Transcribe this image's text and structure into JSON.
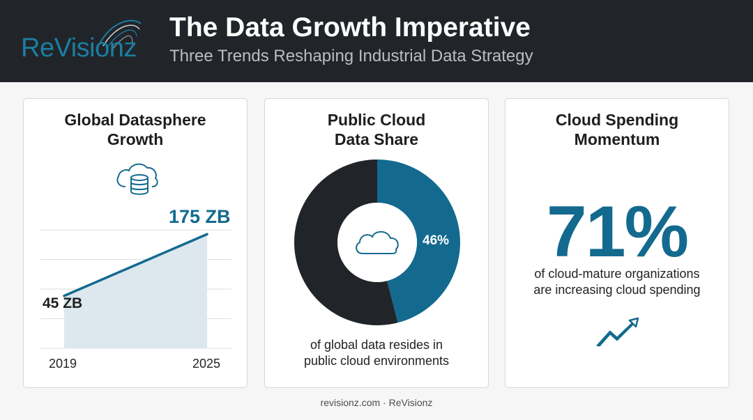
{
  "brand": {
    "logo_text": "ReVisionz"
  },
  "header": {
    "title": "The Data Growth Imperative",
    "subtitle": "Three Trends Reshaping Industrial Data Strategy"
  },
  "colors": {
    "header_bg": "#212529",
    "accent": "#136a8e",
    "dark": "#212529",
    "area_fill": "#dce8ee"
  },
  "cards": [
    {
      "title": "Global Datasphere Growth",
      "icon": "cloud-database-icon",
      "start_label": "45 ZB",
      "end_label": "175 ZB",
      "x_start": "2019",
      "x_end": "2025"
    },
    {
      "title": "Public Cloud Data Share",
      "icon": "cloud-icon",
      "value_label": "46%",
      "caption_line1": "of global data resides in",
      "caption_line2": "public cloud environments"
    },
    {
      "title": "Cloud Spending Momentum",
      "stat": "71%",
      "caption_line1": "of cloud-mature organizations",
      "caption_line2": "are increasing cloud spending",
      "icon": "trending-up-icon"
    }
  ],
  "chart_data": [
    {
      "type": "area",
      "title": "Global Datasphere Growth",
      "x": [
        "2019",
        "2025"
      ],
      "series": [
        {
          "values": [
            45,
            175
          ]
        }
      ],
      "units": "ZB",
      "ylim": [
        0,
        200
      ],
      "grid": true
    },
    {
      "type": "pie",
      "title": "Public Cloud Data Share",
      "categories": [
        "public cloud",
        "other"
      ],
      "values": [
        46,
        54
      ],
      "donut": true
    }
  ],
  "footer": {
    "text": "revisionz.com · ReVisionz"
  }
}
